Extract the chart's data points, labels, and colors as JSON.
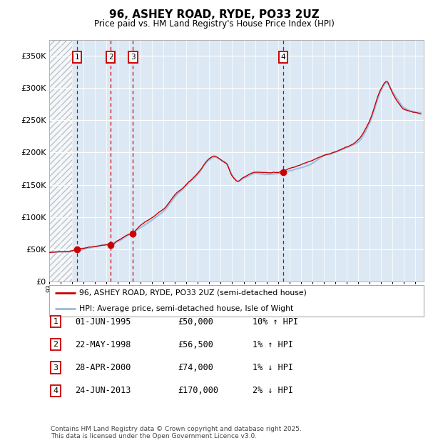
{
  "title": "96, ASHEY ROAD, RYDE, PO33 2UZ",
  "subtitle": "Price paid vs. HM Land Registry's House Price Index (HPI)",
  "transactions": [
    {
      "num": 1,
      "date_label": "01-JUN-1995",
      "price": 50000,
      "rel": "10% ↑ HPI",
      "year": 1995.42
    },
    {
      "num": 2,
      "date_label": "22-MAY-1998",
      "price": 56500,
      "rel": "1% ↑ HPI",
      "year": 1998.38
    },
    {
      "num": 3,
      "date_label": "28-APR-2000",
      "price": 74000,
      "rel": "1% ↓ HPI",
      "year": 2000.32
    },
    {
      "num": 4,
      "date_label": "24-JUN-2013",
      "price": 170000,
      "rel": "2% ↓ HPI",
      "year": 2013.47
    }
  ],
  "legend_property": "96, ASHEY ROAD, RYDE, PO33 2UZ (semi-detached house)",
  "legend_hpi": "HPI: Average price, semi-detached house, Isle of Wight",
  "footnote": "Contains HM Land Registry data © Crown copyright and database right 2025.\nThis data is licensed under the Open Government Licence v3.0.",
  "bg_color": "#dce9f5",
  "grid_color": "#ffffff",
  "property_line_color": "#cc0000",
  "hpi_line_color": "#99bbdd",
  "dot_color": "#cc0000",
  "vline_color": "#cc0000",
  "box_color": "#cc0000",
  "ylim": [
    0,
    375000
  ],
  "yticks": [
    0,
    50000,
    100000,
    150000,
    200000,
    250000,
    300000,
    350000
  ],
  "ytick_labels": [
    "£0",
    "£50K",
    "£100K",
    "£150K",
    "£200K",
    "£250K",
    "£300K",
    "£350K"
  ],
  "xlim_start": 1993.0,
  "xlim_end": 2025.75,
  "hatch_end": 1995.0,
  "hpi_knots_x": [
    1993,
    1994,
    1995,
    1996,
    1997,
    1998,
    1999,
    2000,
    2001,
    2002,
    2003,
    2004,
    2005,
    2006,
    2007,
    2007.5,
    2008,
    2008.5,
    2009,
    2009.5,
    2010,
    2011,
    2012,
    2013,
    2014,
    2015,
    2016,
    2017,
    2018,
    2019,
    2020,
    2021,
    2022,
    2022.5,
    2023,
    2023.5,
    2024,
    2025,
    2025.5
  ],
  "hpi_knots_y": [
    45000,
    46000,
    47000,
    50000,
    53000,
    56000,
    62000,
    72000,
    83000,
    95000,
    108000,
    130000,
    148000,
    165000,
    188000,
    192000,
    188000,
    183000,
    165000,
    155000,
    160000,
    168000,
    167000,
    168000,
    173000,
    178000,
    185000,
    195000,
    200000,
    207000,
    215000,
    245000,
    295000,
    308000,
    295000,
    282000,
    270000,
    263000,
    262000
  ],
  "prop_knots_x": [
    1993,
    1994,
    1995,
    1995.42,
    1996,
    1997,
    1998,
    1998.38,
    1999,
    2000,
    2000.32,
    2001,
    2002,
    2003,
    2004,
    2005,
    2006,
    2007,
    2007.5,
    2008,
    2008.5,
    2009,
    2009.5,
    2010,
    2011,
    2012,
    2013,
    2013.47,
    2014,
    2015,
    2016,
    2017,
    2018,
    2019,
    2020,
    2021,
    2022,
    2022.5,
    2023,
    2023.5,
    2024,
    2025,
    2025.5
  ],
  "prop_knots_y": [
    45000,
    46500,
    48000,
    50000,
    52000,
    55000,
    57000,
    56500,
    63000,
    72000,
    74000,
    85000,
    97000,
    110000,
    133000,
    150000,
    167000,
    189000,
    193000,
    188000,
    182000,
    163000,
    155000,
    161000,
    168000,
    167000,
    168000,
    170000,
    174000,
    180000,
    187000,
    196000,
    201000,
    208000,
    218000,
    247000,
    297000,
    310000,
    293000,
    278000,
    268000,
    262000,
    260000
  ]
}
